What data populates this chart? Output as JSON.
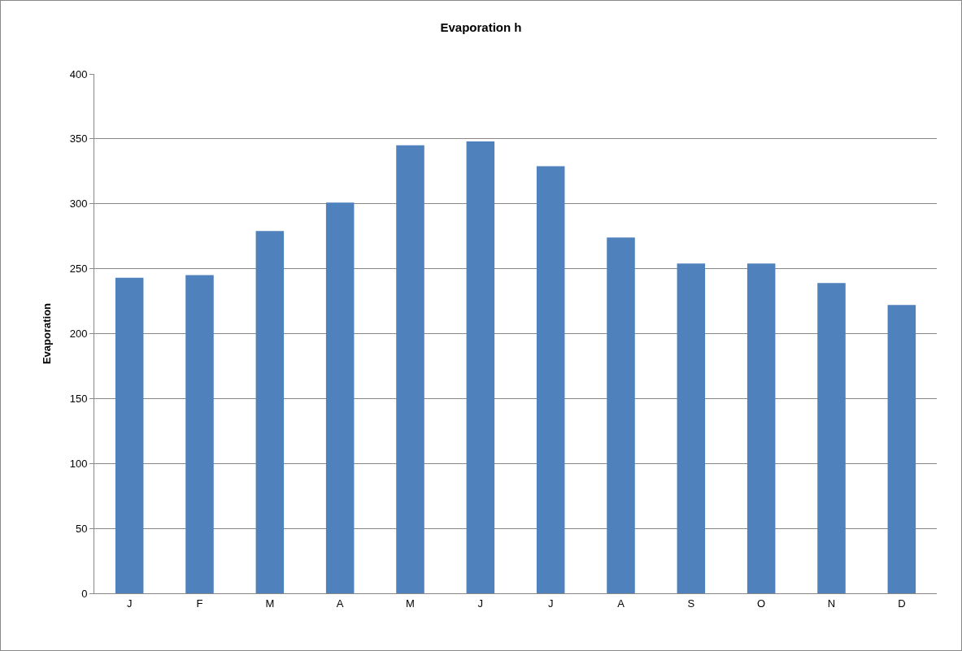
{
  "chart_data": {
    "type": "bar",
    "title": "Evaporation h",
    "ylabel": "Evaporation",
    "categories": [
      "J",
      "F",
      "M",
      "A",
      "M",
      "J",
      "J",
      "A",
      "S",
      "O",
      "N",
      "D"
    ],
    "values": [
      243,
      245,
      279,
      301,
      345,
      348,
      329,
      274,
      254,
      254,
      239,
      222
    ],
    "color": "#4f81bd",
    "ylim": [
      0,
      400
    ],
    "yticks": [
      0,
      50,
      100,
      150,
      200,
      250,
      300,
      350,
      400
    ],
    "grid": "y",
    "legend": false
  }
}
